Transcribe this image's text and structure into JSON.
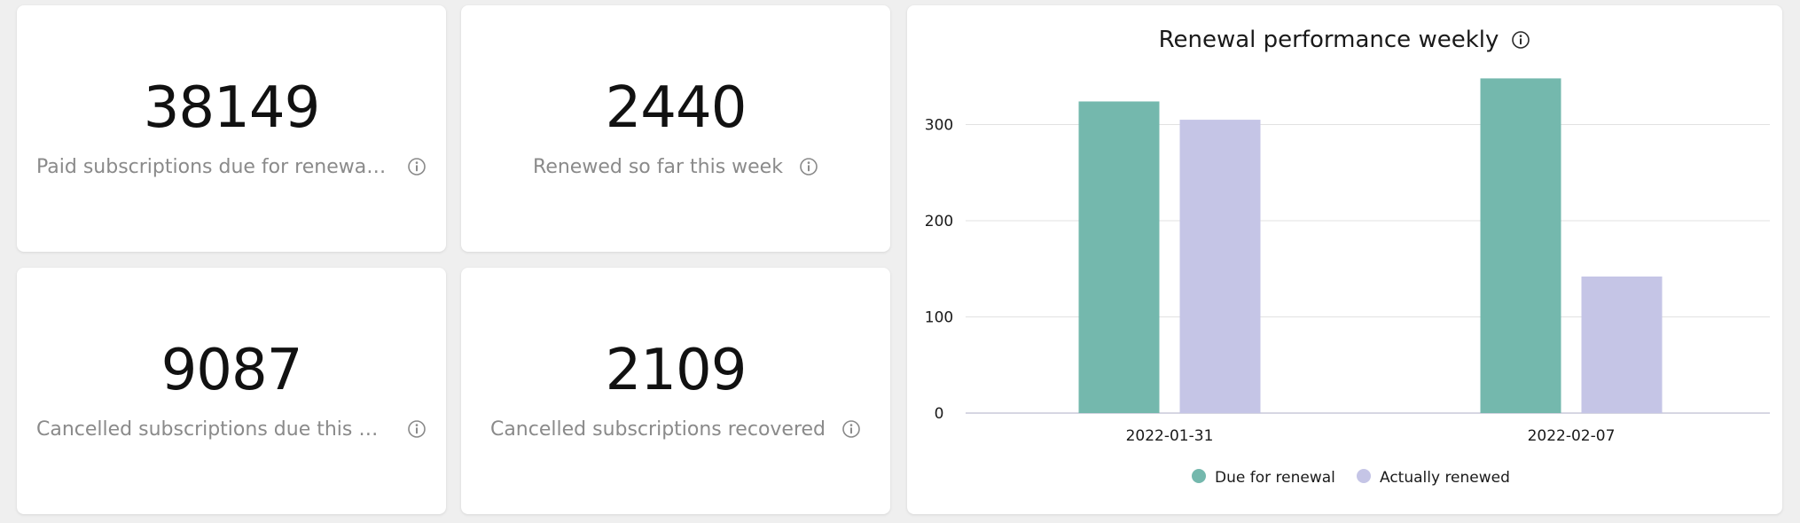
{
  "stats": [
    {
      "value": "38149",
      "label": "Paid subscriptions due for renewal t..."
    },
    {
      "value": "2440",
      "label": "Renewed so far this week"
    },
    {
      "value": "9087",
      "label": "Cancelled subscriptions due this week"
    },
    {
      "value": "2109",
      "label": "Cancelled subscriptions recovered"
    }
  ],
  "colors": {
    "due": "#74b8ad",
    "renewed": "#c5c5e6",
    "grid": "#e2e2e2",
    "axis": "#c8c8d8"
  },
  "chart_data": {
    "type": "bar",
    "title": "Renewal performance weekly",
    "categories": [
      "2022-01-31",
      "2022-02-07"
    ],
    "series": [
      {
        "name": "Due for renewal",
        "values": [
          324,
          348
        ]
      },
      {
        "name": "Actually renewed",
        "values": [
          305,
          142
        ]
      }
    ],
    "ylim": [
      0,
      350
    ],
    "yticks": [
      "0",
      "100",
      "200",
      "300"
    ],
    "grid": true,
    "legend_position": "bottom"
  }
}
